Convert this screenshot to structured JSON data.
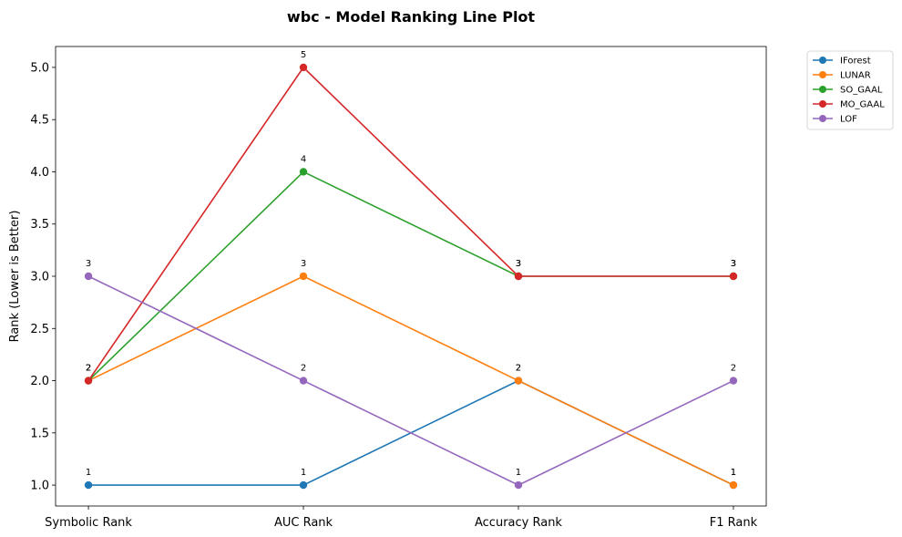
{
  "chart_data": {
    "type": "line",
    "title": "wbc - Model Ranking Line Plot",
    "xlabel": "",
    "ylabel": "Rank (Lower is Better)",
    "categories": [
      "Symbolic Rank",
      "AUC Rank",
      "Accuracy Rank",
      "F1 Rank"
    ],
    "ylim": [
      0.8,
      5.2
    ],
    "yticks": [
      1.0,
      1.5,
      2.0,
      2.5,
      3.0,
      3.5,
      4.0,
      4.5,
      5.0
    ],
    "ytick_labels": [
      "1.0",
      "1.5",
      "2.0",
      "2.5",
      "3.0",
      "3.5",
      "4.0",
      "4.5",
      "5.0"
    ],
    "grid": false,
    "legend_position": "outside-top-right",
    "markers": true,
    "data_labels": true,
    "series": [
      {
        "name": "IForest",
        "color": "#1f77b4",
        "values": [
          1,
          1,
          2,
          1
        ]
      },
      {
        "name": "LUNAR",
        "color": "#ff7f0e",
        "values": [
          2,
          3,
          2,
          1
        ]
      },
      {
        "name": "SO_GAAL",
        "color": "#2ca02c",
        "values": [
          2,
          4,
          3,
          3
        ]
      },
      {
        "name": "MO_GAAL",
        "color": "#d62728",
        "values": [
          2,
          5,
          3,
          3
        ]
      },
      {
        "name": "LOF",
        "color": "#9467bd",
        "values": [
          3,
          2,
          1,
          2
        ]
      }
    ]
  }
}
